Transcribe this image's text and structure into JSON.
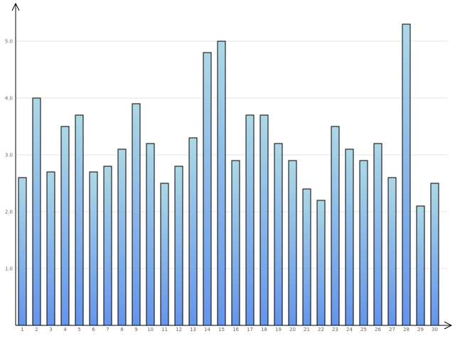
{
  "chart_data": {
    "type": "bar",
    "title": "",
    "xlabel": "",
    "ylabel": "",
    "categories": [
      "1",
      "2",
      "3",
      "4",
      "5",
      "6",
      "7",
      "8",
      "9",
      "10",
      "11",
      "12",
      "13",
      "14",
      "15",
      "16",
      "17",
      "18",
      "19",
      "20",
      "21",
      "22",
      "23",
      "24",
      "25",
      "26",
      "27",
      "28",
      "29",
      "30"
    ],
    "values": [
      26,
      40,
      27,
      35,
      37,
      27,
      28,
      31,
      39,
      32,
      25,
      28,
      33,
      48,
      50,
      29,
      37,
      37,
      32,
      29,
      24,
      22,
      35,
      31,
      29,
      32,
      26,
      53,
      21,
      25
    ],
    "ylim": [
      0,
      55
    ],
    "yticks": [
      10,
      20,
      30,
      40,
      50
    ],
    "ytick_labels": [
      "1.0",
      "2.0",
      "3.0",
      "4.0",
      "5.0"
    ],
    "grid": true,
    "legend": "none",
    "colors": {
      "bar_top": "#add8e6",
      "bar_bottom": "#6495ed",
      "bar_stroke": "#000000",
      "grid": "#e6e6e6",
      "axis": "#000000",
      "tick_text": "#666666"
    }
  }
}
